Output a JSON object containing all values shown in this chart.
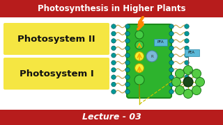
{
  "title": "Photosynthesis in Higher Plants",
  "title_bg": "#b71c1c",
  "title_color": "#ffffff",
  "main_bg": "#ffffff",
  "bottom_bar_bg": "#b71c1c",
  "bottom_bar_text": "Lecture - 03",
  "bottom_bar_color": "#ffffff",
  "label1": "Photosystem II",
  "label2": "Photosystem I",
  "label_bg": "#f5e642",
  "label_text_color": "#111111",
  "membrane_bg": "#2db32d",
  "membrane_outline": "#1a8a1a",
  "bilayer_head_color": "#009999",
  "bilayer_tail_color": "#c8a850",
  "arrow_color": "#f5a800"
}
